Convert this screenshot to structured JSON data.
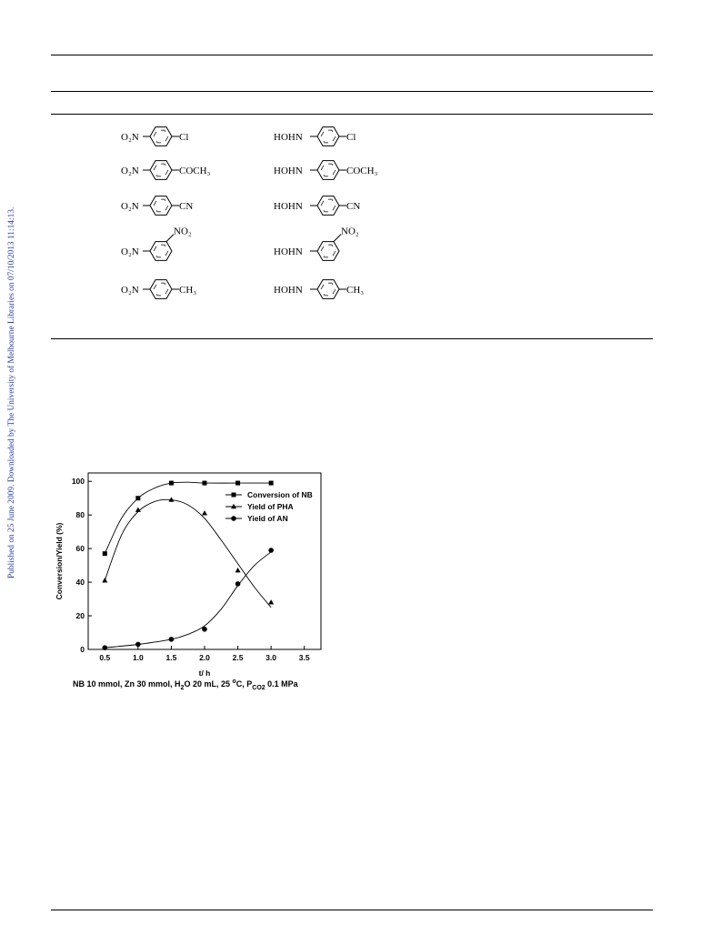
{
  "side_note": "Published on 25 June 2009. Downloaded by The University of Melbourne Libraries on 07/10/2013 11:14:13.",
  "scheme": {
    "rows": [
      {
        "substrate": "O₂N",
        "product": "HOHN",
        "substituent": "Cl",
        "meta": false
      },
      {
        "substrate": "O₂N",
        "product": "HOHN",
        "substituent": "COCH₃",
        "meta": false
      },
      {
        "substrate": "O₂N",
        "product": "HOHN",
        "substituent": "CN",
        "meta": false
      },
      {
        "substrate": "O₂N",
        "product": "HOHN",
        "substituent": "NO₂",
        "meta": true
      },
      {
        "substrate": "O₂N",
        "product": "HOHN",
        "substituent": "CH₃",
        "meta": false
      }
    ]
  },
  "caption": {
    "prefix": "NB 10 mmol, Zn 30 mmol, H",
    "h2o_sub": "2",
    "mid": "O 20 mL, 25 ",
    "deg_sup": "o",
    "mid2": "C, P",
    "p_sub": "CO2",
    "suffix": " 0.1 MPa"
  },
  "chart_data": {
    "type": "scatter",
    "xlabel": "t/ h",
    "ylabel": "Conversion/Yield (%)",
    "xlim": [
      0.25,
      3.75
    ],
    "ylim": [
      0,
      105
    ],
    "xticks": [
      "0.5",
      "1.0",
      "1.5",
      "2.0",
      "2.5",
      "3.0",
      "3.5"
    ],
    "yticks": [
      "0",
      "20",
      "40",
      "60",
      "80",
      "100"
    ],
    "x": [
      0.5,
      1.0,
      1.5,
      2.0,
      2.5,
      3.0
    ],
    "legend_position": "top-right",
    "series": [
      {
        "name": "Conversion of NB",
        "marker": "square",
        "values": [
          57,
          90,
          99,
          99,
          99,
          99
        ],
        "fit": [
          [
            0.5,
            57
          ],
          [
            0.75,
            78
          ],
          [
            1.0,
            90
          ],
          [
            1.25,
            96
          ],
          [
            1.5,
            99
          ],
          [
            1.75,
            99.5
          ],
          [
            2.0,
            99
          ],
          [
            2.5,
            99
          ],
          [
            3.0,
            99
          ]
        ]
      },
      {
        "name": "Yield of PHA",
        "marker": "triangle",
        "values": [
          41,
          83,
          89,
          81,
          47,
          28
        ],
        "fit": [
          [
            0.5,
            41
          ],
          [
            0.75,
            68
          ],
          [
            1.0,
            82
          ],
          [
            1.25,
            88
          ],
          [
            1.5,
            89
          ],
          [
            1.75,
            86
          ],
          [
            2.0,
            78
          ],
          [
            2.25,
            65
          ],
          [
            2.5,
            51
          ],
          [
            2.75,
            37
          ],
          [
            3.0,
            25
          ]
        ]
      },
      {
        "name": "Yield of AN",
        "marker": "circle",
        "values": [
          1,
          3,
          6,
          12,
          39,
          59
        ],
        "fit": [
          [
            0.5,
            1
          ],
          [
            1.0,
            3
          ],
          [
            1.5,
            6
          ],
          [
            1.75,
            9
          ],
          [
            2.0,
            14
          ],
          [
            2.25,
            24
          ],
          [
            2.5,
            38
          ],
          [
            2.75,
            50
          ],
          [
            3.0,
            58
          ]
        ]
      }
    ]
  }
}
